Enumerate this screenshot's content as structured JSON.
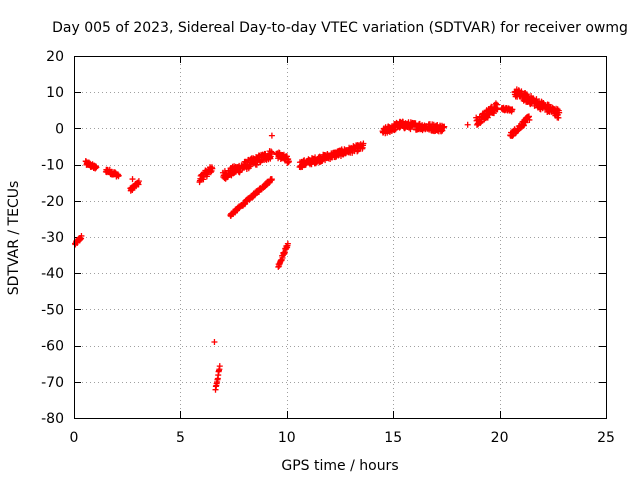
{
  "chart_data": {
    "type": "scatter",
    "title": "Day 005 of 2023, Sidereal Day-to-day VTEC variation (SDTVAR) for receiver owmg",
    "xlabel": "GPS time / hours",
    "ylabel": "SDTVAR / TECUs",
    "xlim": [
      0,
      25
    ],
    "ylim": [
      -80,
      20
    ],
    "xticks": [
      0,
      5,
      10,
      15,
      20,
      25
    ],
    "yticks": [
      -80,
      -70,
      -60,
      -50,
      -40,
      -30,
      -20,
      -10,
      0,
      10,
      20
    ],
    "grid": true,
    "marker": "+",
    "color": "#ff0000",
    "segments": [
      {
        "x0": 0.05,
        "x1": 0.35,
        "y0": -32,
        "y1": -30,
        "spread": 1.0
      },
      {
        "x0": 0.55,
        "x1": 1.05,
        "y0": -9.5,
        "y1": -11,
        "spread": 1.2
      },
      {
        "x0": 1.5,
        "x1": 2.1,
        "y0": -11.5,
        "y1": -13,
        "spread": 1.2
      },
      {
        "x0": 2.65,
        "x1": 3.05,
        "y0": -17,
        "y1": -15,
        "spread": 1.0
      },
      {
        "x0": 5.9,
        "x1": 6.5,
        "y0": -14,
        "y1": -11,
        "spread": 2.0
      },
      {
        "x0": 6.65,
        "x1": 6.85,
        "y0": -72,
        "y1": -66,
        "spread": 1.0
      },
      {
        "x0": 7.0,
        "x1": 9.3,
        "y0": -13,
        "y1": -7,
        "spread": 2.5
      },
      {
        "x0": 7.35,
        "x1": 9.3,
        "y0": -24,
        "y1": -14,
        "spread": 0.8
      },
      {
        "x0": 9.6,
        "x1": 10.05,
        "y0": -38,
        "y1": -32,
        "spread": 1.0
      },
      {
        "x0": 9.5,
        "x1": 10.1,
        "y0": -7,
        "y1": -9,
        "spread": 2.0
      },
      {
        "x0": 10.6,
        "x1": 13.6,
        "y0": -10,
        "y1": -5,
        "spread": 1.8
      },
      {
        "x0": 14.5,
        "x1": 15.3,
        "y0": -1,
        "y1": 1,
        "spread": 2.0
      },
      {
        "x0": 15.3,
        "x1": 17.4,
        "y0": 1,
        "y1": 0,
        "spread": 2.0
      },
      {
        "x0": 18.9,
        "x1": 19.9,
        "y0": 2,
        "y1": 6,
        "spread": 2.5
      },
      {
        "x0": 20.1,
        "x1": 20.6,
        "y0": 5.5,
        "y1": 5,
        "spread": 0.8
      },
      {
        "x0": 20.5,
        "x1": 21.4,
        "y0": -2,
        "y1": 3,
        "spread": 1.5
      },
      {
        "x0": 20.7,
        "x1": 22.8,
        "y0": 10,
        "y1": 4,
        "spread": 2.5
      }
    ],
    "single_points": [
      {
        "x": 9.3,
        "y": -2
      },
      {
        "x": 6.6,
        "y": -59
      },
      {
        "x": 2.75,
        "y": -14
      },
      {
        "x": 18.5,
        "y": 1
      }
    ]
  }
}
